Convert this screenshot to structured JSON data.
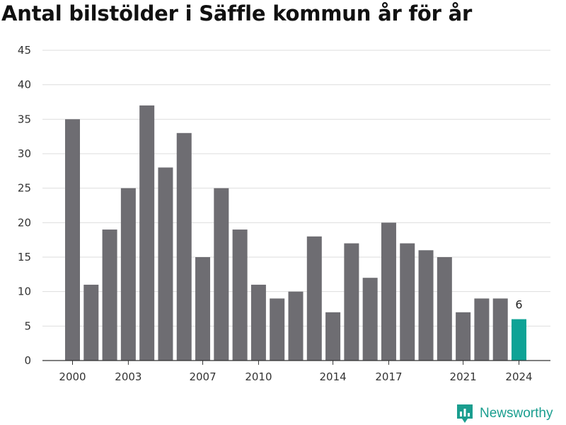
{
  "title": "Antal bilstölder i Säffle kommun år för år",
  "brand": {
    "name": "Newsworthy",
    "icon": "newsworthy-logo-icon",
    "color": "#1a9e8f"
  },
  "chart_data": {
    "type": "bar",
    "title": "Antal bilstölder i Säffle kommun år för år",
    "xlabel": "",
    "ylabel": "",
    "categories": [
      "2000",
      "2001",
      "2002",
      "2003",
      "2004",
      "2005",
      "2006",
      "2007",
      "2008",
      "2009",
      "2010",
      "2011",
      "2012",
      "2013",
      "2014",
      "2015",
      "2016",
      "2017",
      "2018",
      "2019",
      "2020",
      "2021",
      "2022",
      "2023",
      "2024"
    ],
    "values": [
      35,
      11,
      19,
      25,
      37,
      28,
      33,
      15,
      25,
      19,
      11,
      9,
      10,
      18,
      7,
      17,
      12,
      20,
      17,
      16,
      15,
      7,
      9,
      9,
      6
    ],
    "x_tick_labels": [
      "2000",
      "2003",
      "2007",
      "2010",
      "2014",
      "2017",
      "2021",
      "2024"
    ],
    "y_ticks": [
      0,
      5,
      10,
      15,
      20,
      25,
      30,
      35,
      40,
      45
    ],
    "ylim": [
      0,
      45
    ],
    "grid": true,
    "legend": "none",
    "highlight": {
      "category": "2024",
      "label": "6"
    },
    "colors": {
      "bar": "#6e6d72",
      "highlight": "#0ea396",
      "grid": "#dedede",
      "axis": "#333333"
    }
  }
}
